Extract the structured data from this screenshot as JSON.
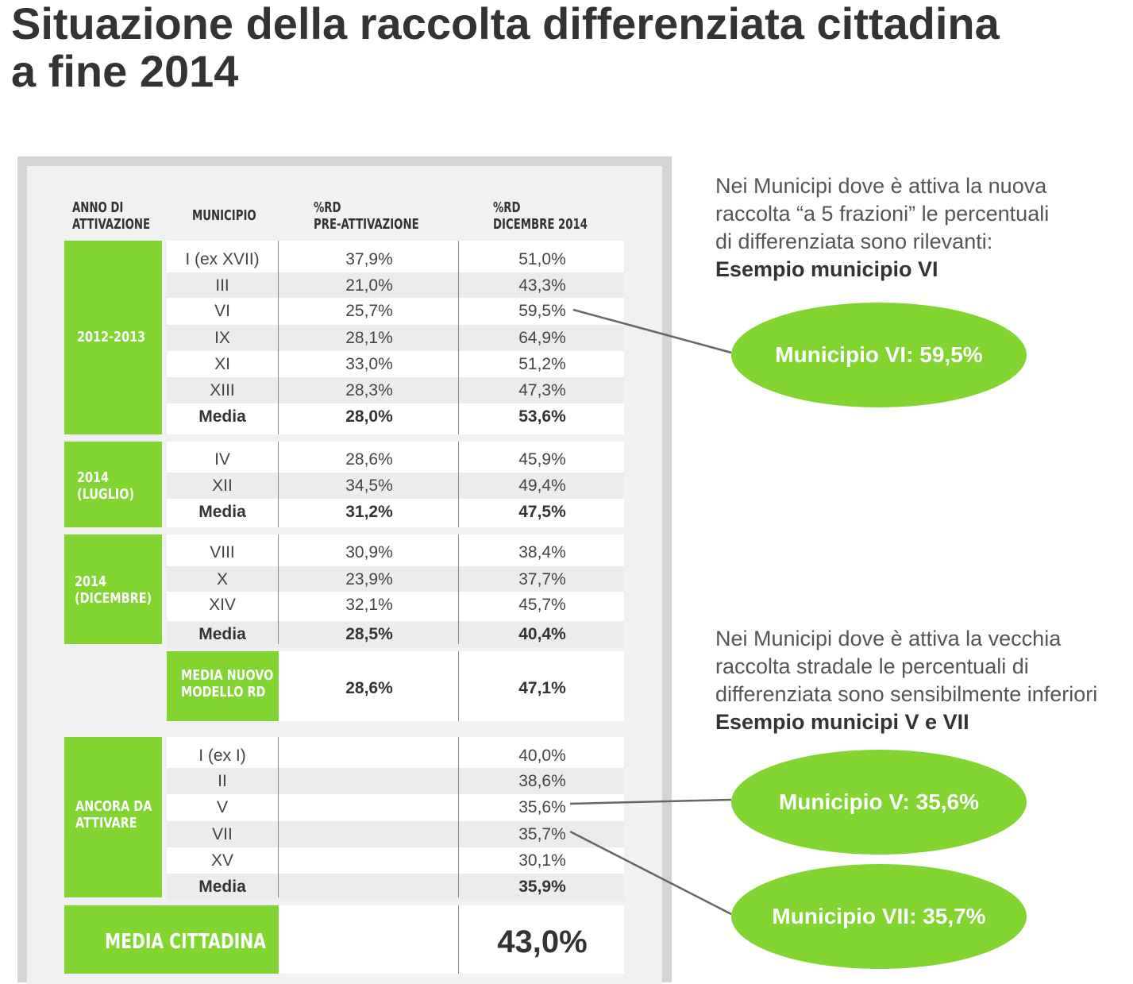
{
  "title": {
    "line1": "Situazione della raccolta differenziata cittadina",
    "line2": "a fine 2014"
  },
  "table": {
    "headers": {
      "col0": [
        "ANNO DI",
        "ATTIVAZIONE"
      ],
      "col1": "MUNICIPIO",
      "col2": [
        "%RD",
        "PRE-ATTIVAZIONE"
      ],
      "col3": [
        "%RD",
        "DICEMBRE 2014"
      ]
    },
    "groups": [
      {
        "label": [
          "2012-2013"
        ],
        "rows": [
          {
            "municipio": "I (ex XVII)",
            "pre": "37,9%",
            "dic": "51,0%"
          },
          {
            "municipio": "III",
            "pre": "21,0%",
            "dic": "43,3%"
          },
          {
            "municipio": "VI",
            "pre": "25,7%",
            "dic": "59,5%"
          },
          {
            "municipio": "IX",
            "pre": "28,1%",
            "dic": "64,9%"
          },
          {
            "municipio": "XI",
            "pre": "33,0%",
            "dic": "51,2%"
          },
          {
            "municipio": "XIII",
            "pre": "28,3%",
            "dic": "47,3%"
          },
          {
            "municipio": "Media",
            "pre": "28,0%",
            "dic": "53,6%"
          }
        ]
      },
      {
        "label": [
          "2014",
          "(LUGLIO)"
        ],
        "rows": [
          {
            "municipio": "IV",
            "pre": "28,6%",
            "dic": "45,9%"
          },
          {
            "municipio": "XII",
            "pre": "34,5%",
            "dic": "49,4%"
          },
          {
            "municipio": "Media",
            "pre": "31,2%",
            "dic": "47,5%"
          }
        ]
      },
      {
        "label": [
          "2014",
          "(DICEMBRE)"
        ],
        "rows": [
          {
            "municipio": "VIII",
            "pre": "30,9%",
            "dic": "38,4%"
          },
          {
            "municipio": "X",
            "pre": "23,9%",
            "dic": "37,7%"
          },
          {
            "municipio": "XIV",
            "pre": "32,1%",
            "dic": "45,7%"
          },
          {
            "municipio": "Media",
            "pre": "28,5%",
            "dic": "40,4%"
          }
        ]
      },
      {
        "label": [
          "ANCORA DA",
          "ATTIVARE"
        ],
        "rows": [
          {
            "municipio": "I (ex I)",
            "pre": "",
            "dic": "40,0%"
          },
          {
            "municipio": "II",
            "pre": "",
            "dic": "38,6%"
          },
          {
            "municipio": "V",
            "pre": "",
            "dic": "35,6%"
          },
          {
            "municipio": "VII",
            "pre": "",
            "dic": "35,7%"
          },
          {
            "municipio": "XV",
            "pre": "",
            "dic": "30,1%"
          },
          {
            "municipio": "Media",
            "pre": "",
            "dic": "35,9%"
          }
        ]
      }
    ],
    "media_nuovo": {
      "label": [
        "MEDIA NUOVO",
        "MODELLO RD"
      ],
      "pre": "28,6%",
      "dic": "47,1%"
    },
    "media_cittadina": {
      "label": "MEDIA CITTADINA",
      "value": "43,0%"
    }
  },
  "annotations": {
    "top": {
      "lines": [
        "Nei Municipi dove è attiva la nuova",
        "raccolta “a 5 frazioni” le percentuali",
        "di differenziata sono rilevanti:"
      ],
      "bold": "Esempio municipio VI"
    },
    "bottom": {
      "lines": [
        "Nei Municipi dove è attiva la vecchia",
        "raccolta stradale le percentuali di",
        "differenziata sono sensibilmente inferiori"
      ],
      "bold": "Esempio municipi V e VII"
    }
  },
  "callouts": {
    "vi": "Municipio VI: 59,5%",
    "v": "Municipio V: 35,6%",
    "vii": "Municipio VII: 35,7%"
  },
  "colors": {
    "green": "#82d431",
    "panel_border": "#d4d4d4",
    "text": "#333333"
  }
}
